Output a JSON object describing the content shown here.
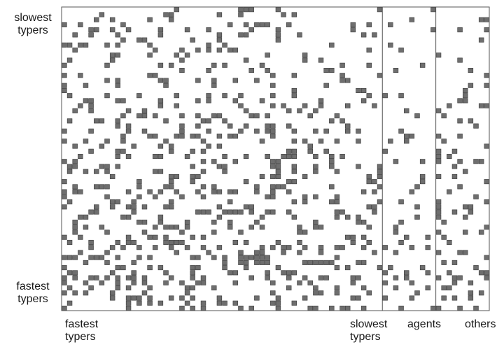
{
  "chart_data": {
    "type": "heatmap",
    "title": "",
    "rows": 60,
    "cols": 80,
    "axis_labels": {
      "y_top": [
        "slowest",
        "typers"
      ],
      "y_bottom": [
        "fastest",
        "typers"
      ],
      "x_left": [
        "fastest",
        "typers"
      ],
      "x_mid": [
        "slowest",
        "typers"
      ],
      "x_agents": "agents",
      "x_others": "others"
    },
    "column_groups": [
      {
        "name": "typers",
        "cols": [
          0,
          59
        ]
      },
      {
        "name": "agents",
        "cols": [
          60,
          69
        ]
      },
      {
        "name": "others",
        "cols": [
          70,
          79
        ]
      }
    ],
    "cell_color": "#6e6e6e",
    "cell_border_color": "#3a3a3a",
    "frame_color": "#555555",
    "density": {
      "typers_block": 0.23,
      "agents_block": 0.08,
      "others_block": 0.16
    },
    "seed": 20240611
  }
}
